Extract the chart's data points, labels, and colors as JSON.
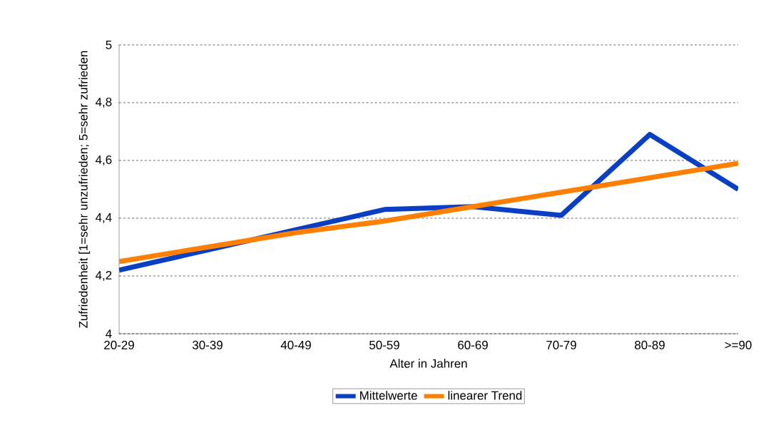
{
  "chart_data": {
    "type": "line",
    "xlabel": "Alter in Jahren",
    "ylabel": "Zufriedenheit [1=sehr unzufrieden; 5=sehr zufrieden",
    "categories": [
      "20-29",
      "30-39",
      "40-49",
      "50-59",
      "60-69",
      "70-79",
      "80-89",
      ">=90"
    ],
    "series": [
      {
        "name": "Mittelwerte",
        "color": "#0a3fc4",
        "values": [
          4.22,
          4.29,
          4.36,
          4.43,
          4.44,
          4.41,
          4.69,
          4.5
        ]
      },
      {
        "name": "linearer Trend",
        "color": "#ff8000",
        "values": [
          4.25,
          4.3,
          4.35,
          4.39,
          4.44,
          4.49,
          4.54,
          4.59
        ]
      }
    ],
    "ylim": [
      4,
      5
    ],
    "yticks": [
      4,
      {
        "value": 4.2,
        "label": "4,2"
      },
      {
        "value": 4.4,
        "label": "4,4"
      },
      {
        "value": 4.6,
        "label": "4,6"
      },
      {
        "value": 4.8,
        "label": "4,8"
      },
      5
    ],
    "grid": "y",
    "legend": "bottom",
    "marker": "none",
    "line_style": "solid"
  }
}
